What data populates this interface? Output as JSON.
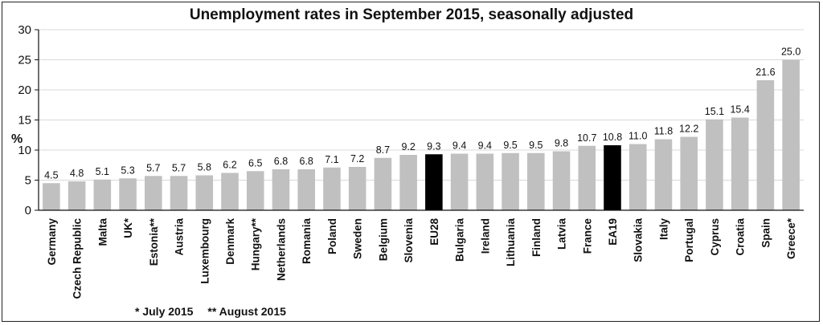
{
  "chart_data": {
    "type": "bar",
    "title": "Unemployment rates in September 2015, seasonally adjusted",
    "ylabel": "%",
    "xlabel": "",
    "ylim": [
      0,
      30
    ],
    "yticks": [
      0,
      5,
      10,
      15,
      20,
      25,
      30
    ],
    "grid": true,
    "legend": "none",
    "categories": [
      "Germany",
      "Czech Republic",
      "Malta",
      "UK*",
      "Estonia**",
      "Austria",
      "Luxembourg",
      "Denmark",
      "Hungary**",
      "Netherlands",
      "Romania",
      "Poland",
      "Sweden",
      "Belgium",
      "Slovenia",
      "EU28",
      "Bulgaria",
      "Ireland",
      "Lithuania",
      "Finland",
      "Latvia",
      "France",
      "EA19",
      "Slovakia",
      "Italy",
      "Portugal",
      "Cyprus",
      "Croatia",
      "Spain",
      "Greece*"
    ],
    "values": [
      4.5,
      4.8,
      5.1,
      5.3,
      5.7,
      5.7,
      5.8,
      6.2,
      6.5,
      6.8,
      6.8,
      7.1,
      7.2,
      8.7,
      9.2,
      9.3,
      9.4,
      9.4,
      9.5,
      9.5,
      9.8,
      10.7,
      10.8,
      11.0,
      11.8,
      12.2,
      15.1,
      15.4,
      21.6,
      25.0
    ],
    "value_labels": [
      "4.5",
      "4.8",
      "5.1",
      "5.3",
      "5.7",
      "5.7",
      "5.8",
      "6.2",
      "6.5",
      "6.8",
      "6.8",
      "7.1",
      "7.2",
      "8.7",
      "9.2",
      "9.3",
      "9.4",
      "9.4",
      "9.5",
      "9.5",
      "9.8",
      "10.7",
      "10.8",
      "11.0",
      "11.8",
      "12.2",
      "15.1",
      "15.4",
      "21.6",
      "25.0"
    ],
    "highlight": [
      "EU28",
      "EA19"
    ],
    "colors": {
      "bar": "#c0c0c0",
      "highlight": "#000000",
      "grid": "#d9d9d9",
      "axis": "#111111"
    },
    "footnotes": [
      "* July 2015",
      "** August 2015"
    ]
  }
}
